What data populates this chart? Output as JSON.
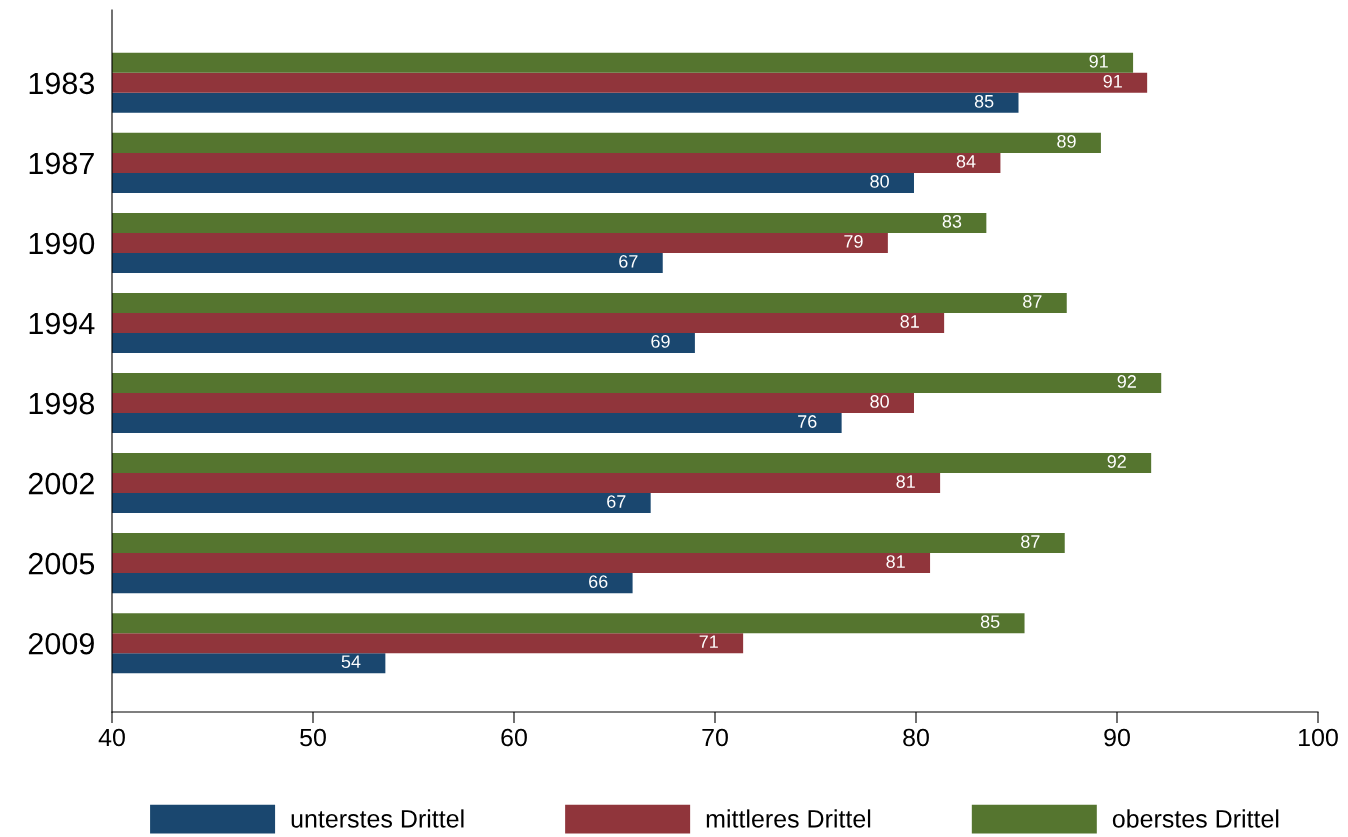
{
  "chart_data": {
    "type": "bar",
    "orientation": "horizontal",
    "categories": [
      "1983",
      "1987",
      "1990",
      "1994",
      "1998",
      "2002",
      "2005",
      "2009"
    ],
    "series": [
      {
        "name": "unterstes Drittel",
        "color": "#1a476f",
        "values": [
          85.1,
          79.9,
          67.4,
          69.0,
          76.3,
          66.8,
          65.9,
          53.6
        ],
        "value_labels": [
          "85",
          "80",
          "67",
          "69",
          "76",
          "67",
          "66",
          "54"
        ]
      },
      {
        "name": "mittleres Drittel",
        "color": "#90353b",
        "values": [
          91.5,
          84.2,
          78.6,
          81.4,
          79.9,
          81.2,
          80.7,
          71.4
        ],
        "value_labels": [
          "91",
          "84",
          "79",
          "81",
          "80",
          "81",
          "81",
          "71"
        ]
      },
      {
        "name": "oberstes Drittel",
        "color": "#55752f",
        "values": [
          90.8,
          89.2,
          83.5,
          87.5,
          92.2,
          91.7,
          87.4,
          85.4
        ],
        "value_labels": [
          "91",
          "89",
          "83",
          "87",
          "92",
          "92",
          "87",
          "85"
        ]
      }
    ],
    "xlim": [
      40,
      100
    ],
    "xticks": [
      40,
      50,
      60,
      70,
      80,
      90,
      100
    ],
    "grid": false,
    "legend": "bottom"
  }
}
